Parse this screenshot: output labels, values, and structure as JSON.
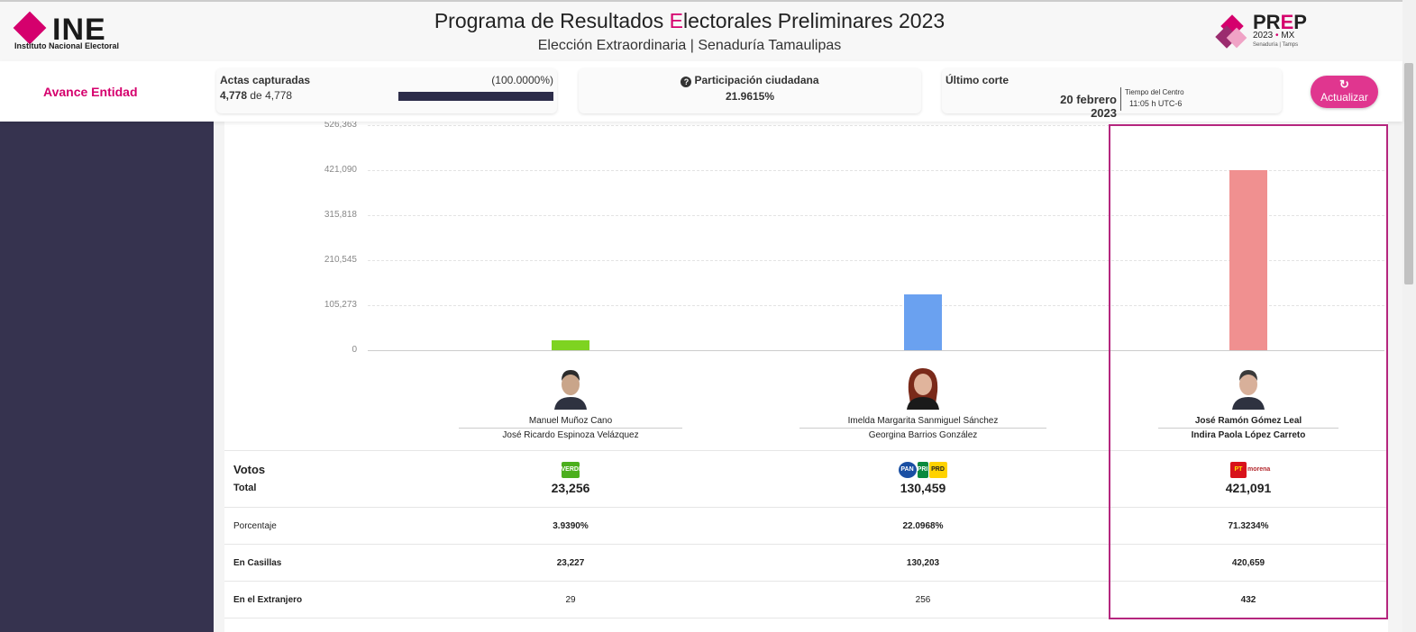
{
  "header": {
    "ine_logo_text": "INE",
    "ine_logo_sub": "Instituto Nacional Electoral",
    "title_pre": "Programa de Resultados ",
    "title_accent": "E",
    "title_post": "lectorales Preliminares 2023",
    "subtitle": "Elección Extraordinaria | Senaduría Tamaulipas",
    "prep_logo": {
      "prefix": "PR",
      "accent": "E",
      "suffix": "P",
      "year": "2023",
      "country": "MX",
      "dot": "•",
      "caption": "Senaduría | Tamps"
    }
  },
  "subbar": {
    "avance_label": "Avance Entidad",
    "actas": {
      "label": "Actas capturadas",
      "percent_text": "(100.0000%)",
      "captured": "4,778",
      "connector": "de",
      "total": "4,778",
      "progress": 1.0
    },
    "participacion": {
      "label": "Participación ciudadana",
      "value": "21.9615%",
      "icon": "question-circle-icon"
    },
    "corte": {
      "label": "Último corte",
      "date": "20 febrero 2023",
      "tz_label": "Tiempo del Centro",
      "time": "11:05 h UTC-6"
    },
    "update_button": {
      "label": "Actualizar",
      "icon": "refresh-icon"
    }
  },
  "chart_data": {
    "type": "bar",
    "categories": [
      "Manuel Muñoz Cano",
      "Imelda Margarita Sanmiguel Sánchez",
      "José Ramón Gómez Leal"
    ],
    "values": [
      23256,
      130459,
      421091
    ],
    "colors": [
      "#7ed321",
      "#6aa1f0",
      "#f09090"
    ],
    "ylim": [
      0,
      526363
    ],
    "yticks": [
      "0",
      "105,273",
      "210,545",
      "315,818",
      "421,090",
      "526,363"
    ],
    "ytick_values": [
      0,
      105273,
      210545,
      315818,
      421090,
      526363
    ],
    "grid": true
  },
  "candidates": [
    {
      "name": "Manuel Muñoz Cano",
      "suplente": "José Ricardo Espinoza Velázquez",
      "highlight": false,
      "party_icon": "verde-party-icon",
      "party": [
        "VERDE"
      ]
    },
    {
      "name": "Imelda Margarita Sanmiguel Sánchez",
      "suplente": "Georgina Barrios González",
      "highlight": false,
      "party_icon": "pan-pri-prd-coalition-icon",
      "party": [
        "PAN",
        "PRI",
        "PRD"
      ]
    },
    {
      "name": "José Ramón Gómez Leal",
      "suplente": "Indira Paola López Carreto",
      "highlight": true,
      "party_icon": "pt-morena-coalition-icon",
      "party": [
        "PT",
        "morena"
      ]
    }
  ],
  "table": {
    "votos_label": "Votos",
    "total_label": "Total",
    "totals": [
      "23,256",
      "130,459",
      "421,091"
    ],
    "rows": [
      {
        "label": "Porcentaje",
        "values": [
          "3.9390%",
          "22.0968%",
          "71.3234%"
        ]
      },
      {
        "label": "En Casillas",
        "values": [
          "23,227",
          "130,203",
          "420,659"
        ]
      },
      {
        "label": "En el Extranjero",
        "values": [
          "29",
          "256",
          "432"
        ]
      }
    ]
  }
}
